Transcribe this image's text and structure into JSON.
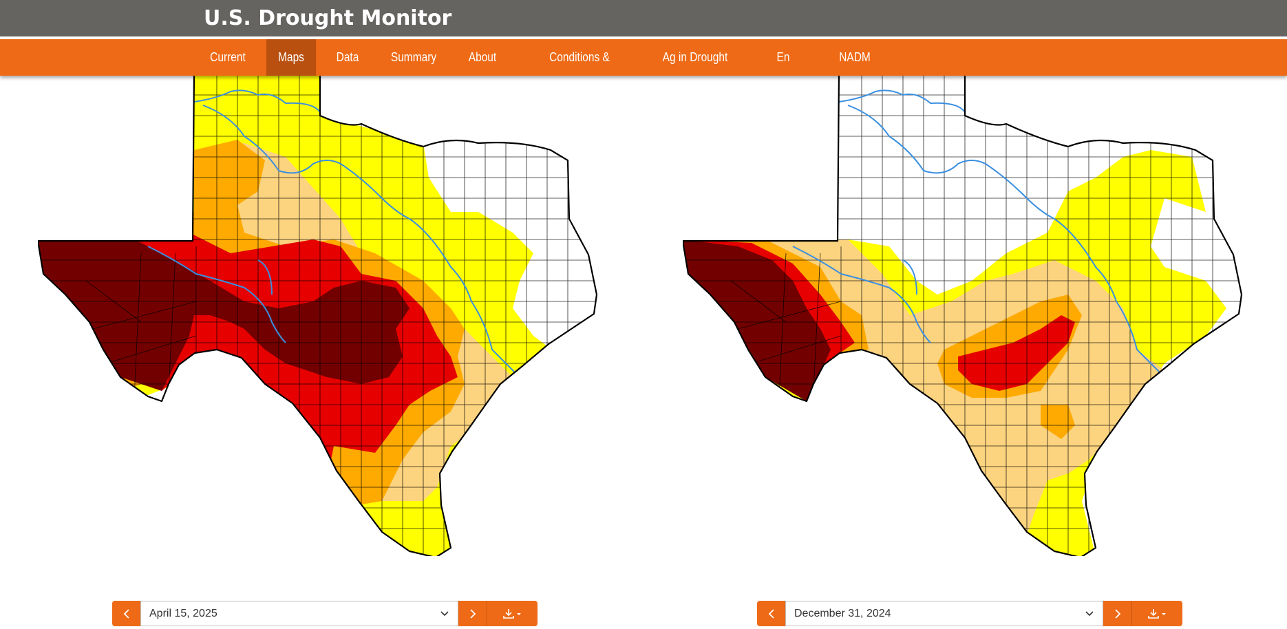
{
  "site": {
    "title": "U.S. Drought Monitor"
  },
  "nav": {
    "items": [
      {
        "label": "Current"
      },
      {
        "label": "Maps",
        "active": true
      },
      {
        "label": "Data"
      },
      {
        "label": "Summary"
      },
      {
        "label": "About"
      },
      {
        "label": "Conditions & Outlooks"
      },
      {
        "label": "Ag in Drought"
      },
      {
        "label": "En Español"
      },
      {
        "label": "NADM"
      }
    ]
  },
  "colors": {
    "header_bg": "#666460",
    "nav_bg": "#ee6a16",
    "nav_active": "#b9500f",
    "D0": "#ffff00",
    "D1": "#fcd37f",
    "D2": "#ffaa00",
    "D3": "#e60000",
    "D4": "#730000",
    "river": "#3a8fe0"
  },
  "maps": [
    {
      "date_label": "April 15, 2025",
      "icons": {
        "prev": "chevron-left-icon",
        "dropdown": "chevron-down-icon",
        "next": "chevron-right-icon",
        "download": "download-icon"
      }
    },
    {
      "date_label": "December 31, 2024",
      "icons": {
        "prev": "chevron-left-icon",
        "dropdown": "chevron-down-icon",
        "next": "chevron-right-icon",
        "download": "download-icon"
      }
    }
  ]
}
